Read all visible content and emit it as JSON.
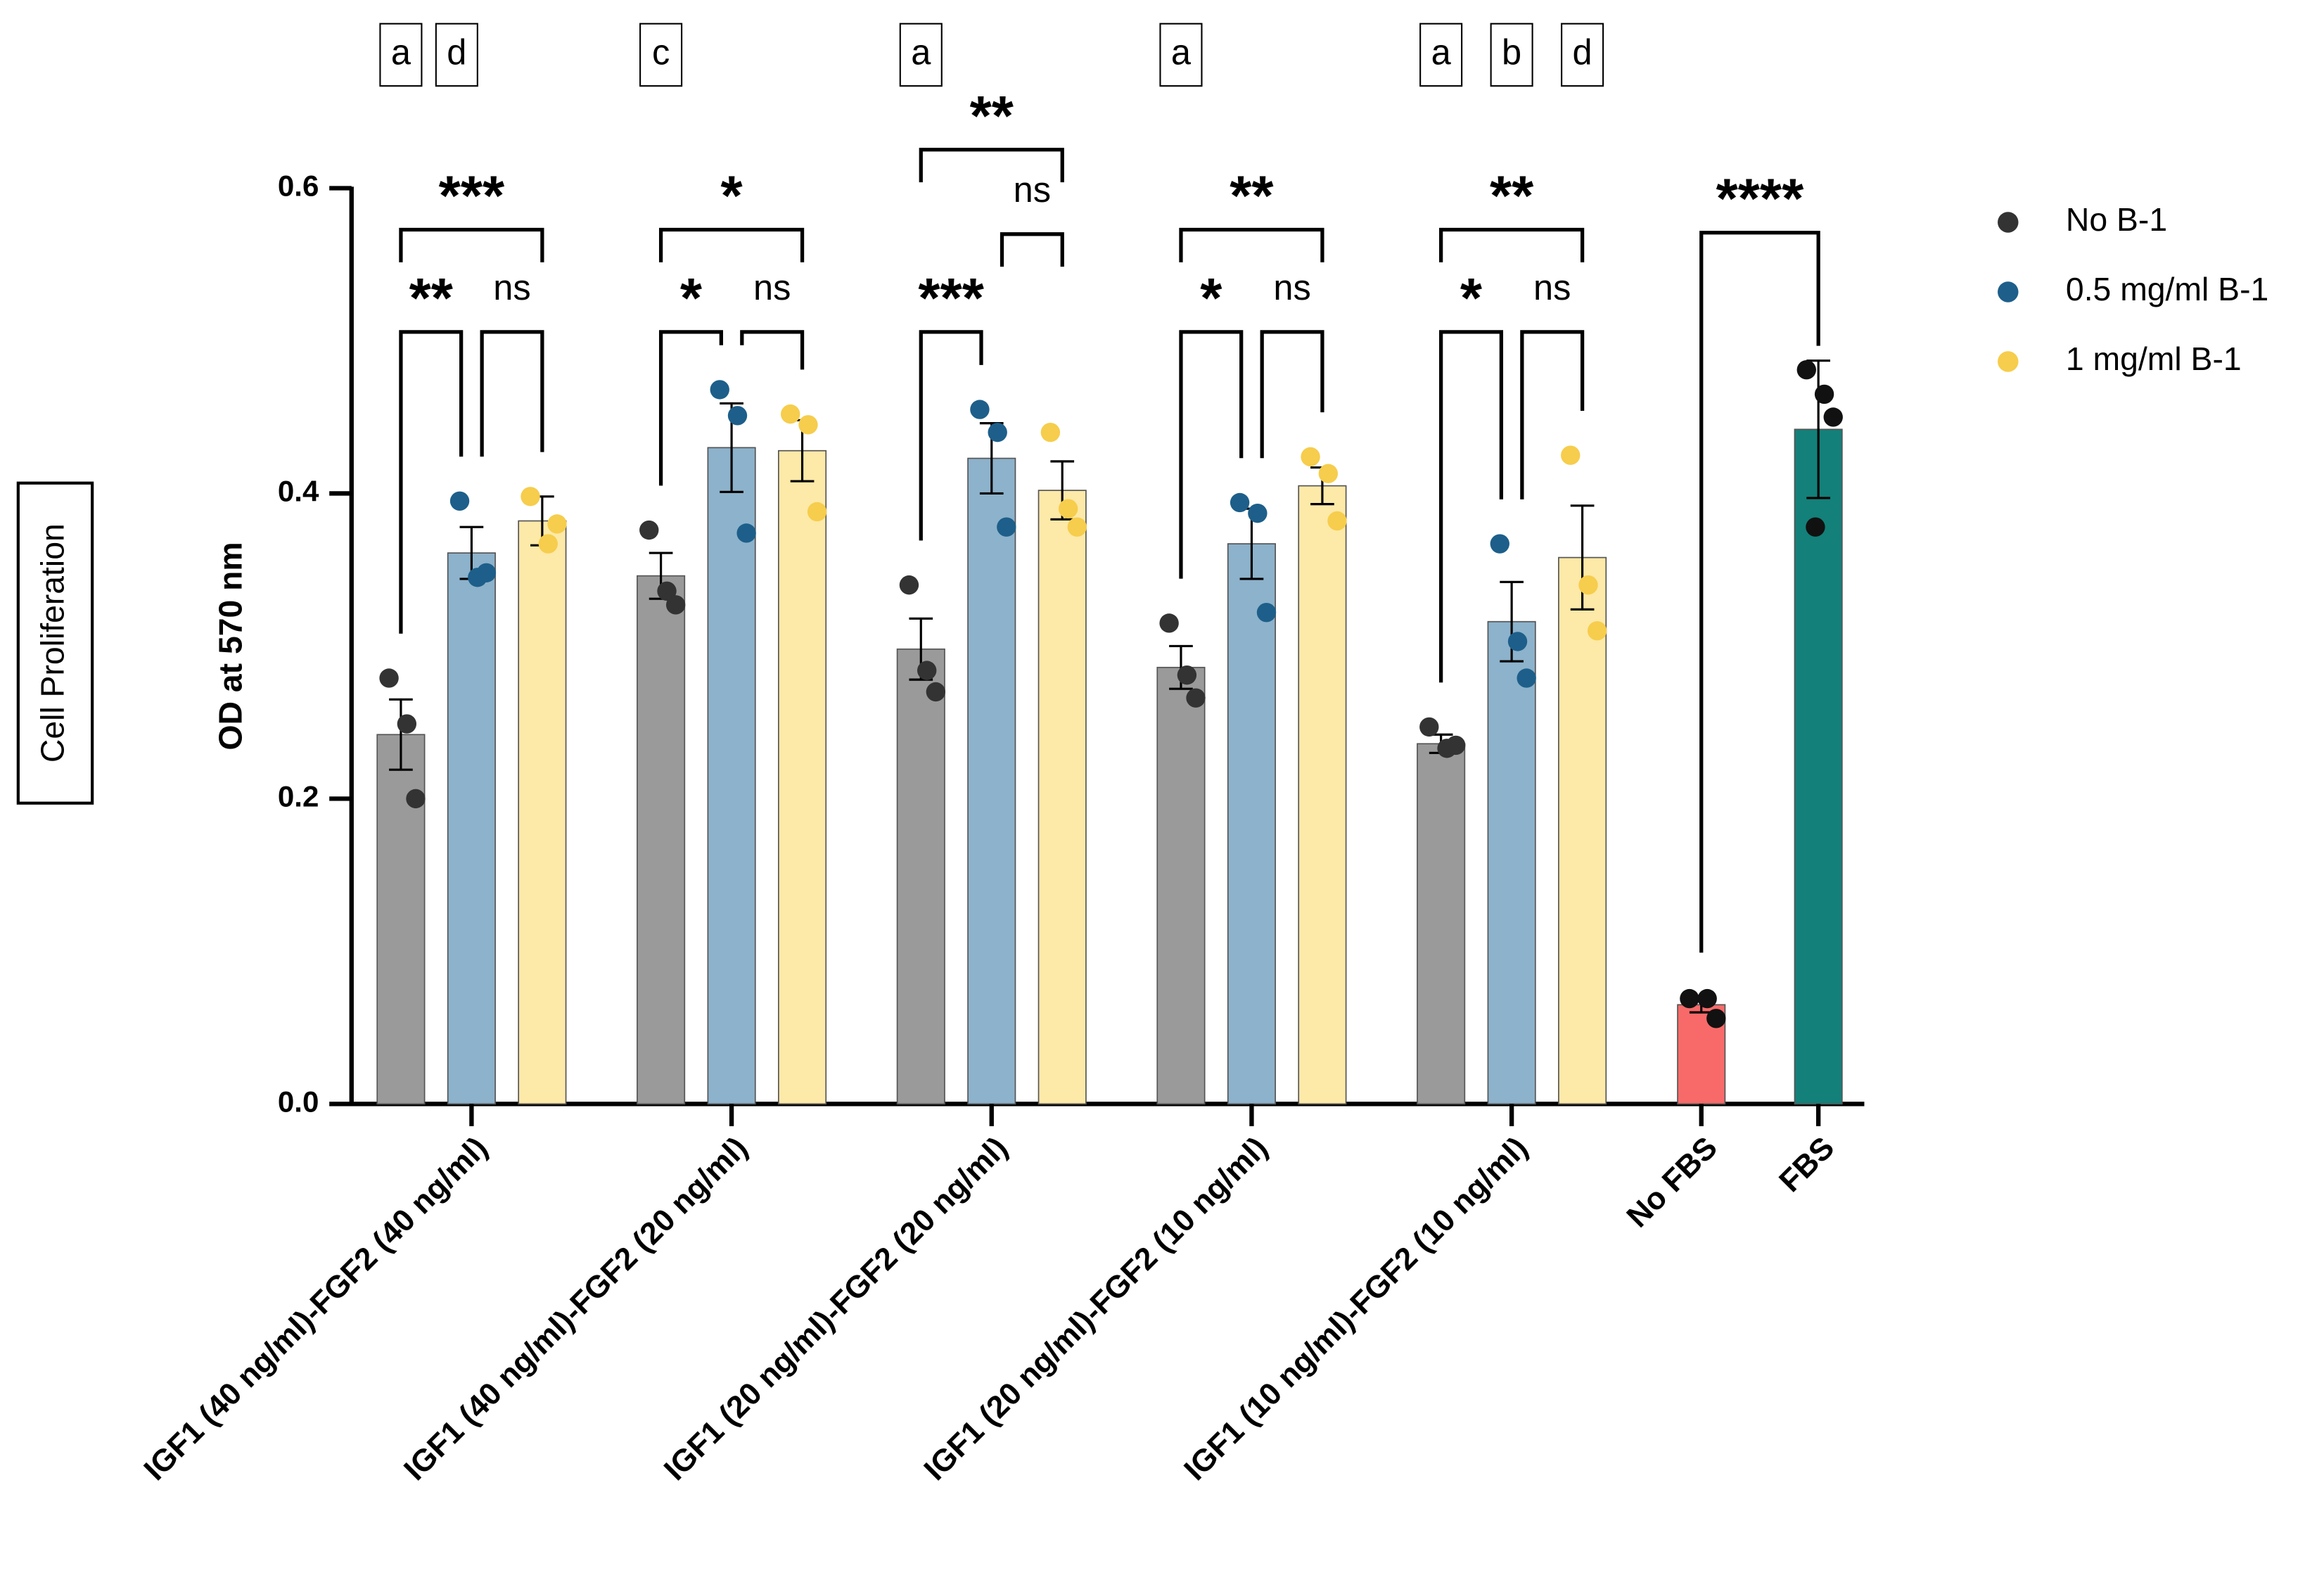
{
  "chart_data": {
    "type": "bar",
    "y_label": "OD at 570 nm",
    "side_label": "Cell Proliferation",
    "categories": [
      "IGF1 (40 ng/ml)-FGF2 (40 ng/ml)",
      "IGF1 (40 ng/ml)-FGF2 (20 ng/ml)",
      "IGF1 (20 ng/ml)-FGF2 (20 ng/ml)",
      "IGF1 (20 ng/ml)-FGF2 (10 ng/ml)",
      "IGF1 (10 ng/ml)-FGF2 (10 ng/ml)",
      "No FBS",
      "FBS"
    ],
    "ylim": [
      0,
      0.6
    ],
    "yticks": [
      {
        "value": 0,
        "label": "0.0"
      },
      0.2,
      0.4,
      0.6
    ],
    "legend": "right",
    "series": [
      {
        "name": "No B-1",
        "color": "#9a9a9a",
        "point_color": "#333333",
        "values": [
          0.242,
          0.346,
          0.298,
          0.286,
          0.236,
          null,
          null
        ],
        "errors": [
          0.023,
          0.015,
          0.02,
          0.014,
          0.006,
          null,
          null
        ],
        "points": [
          [
            0.279,
            0.249,
            0.2
          ],
          [
            0.376,
            0.336,
            0.327
          ],
          [
            0.34,
            0.284,
            0.27
          ],
          [
            0.315,
            0.281,
            0.266
          ],
          [
            0.247,
            0.233,
            0.235
          ],
          null,
          null
        ]
      },
      {
        "name": "0.5 mg/ml B-1",
        "color": "#8db2cb",
        "point_color": "#1d5f8a",
        "values": [
          0.361,
          0.43,
          0.423,
          0.367,
          0.316,
          null,
          null
        ],
        "errors": [
          0.017,
          0.029,
          0.023,
          0.023,
          0.026,
          null,
          null
        ],
        "points": [
          [
            0.395,
            0.345,
            0.348
          ],
          [
            0.468,
            0.451,
            0.374
          ],
          [
            0.455,
            0.44,
            0.378
          ],
          [
            0.394,
            0.387,
            0.322
          ],
          [
            0.367,
            0.303,
            0.279
          ],
          null,
          null
        ]
      },
      {
        "name": "1 mg/ml B-1",
        "color": "#fde9a8",
        "point_color": "#f6cd4c",
        "values": [
          0.382,
          0.428,
          0.402,
          0.405,
          0.358,
          null,
          null
        ],
        "errors": [
          0.016,
          0.02,
          0.019,
          0.012,
          0.034,
          null,
          null
        ],
        "points": [
          [
            0.398,
            0.367,
            0.38
          ],
          [
            0.452,
            0.445,
            0.388
          ],
          [
            0.44,
            0.39,
            0.378
          ],
          [
            0.424,
            0.413,
            0.382
          ],
          [
            0.425,
            0.34,
            0.31
          ],
          null,
          null
        ]
      }
    ],
    "controls": {
      "point_color": "#111111",
      "colors": [
        null,
        null,
        null,
        null,
        null,
        "#f86a6a",
        "#138079"
      ],
      "values": [
        null,
        null,
        null,
        null,
        null,
        0.065,
        0.442
      ],
      "errors": [
        null,
        null,
        null,
        null,
        null,
        0.005,
        0.045
      ],
      "points": [
        null,
        null,
        null,
        null,
        null,
        [
          0.069,
          0.069,
          0.056
        ],
        [
          0.481,
          0.465,
          0.45,
          0.378
        ]
      ]
    },
    "significance": [
      [
        {
          "label": "**",
          "from": 0,
          "to": 1
        },
        {
          "label": "ns",
          "from": 1,
          "to": 2
        },
        {
          "label": "***",
          "from": 0,
          "to": 2
        }
      ],
      [
        {
          "label": "*",
          "from": 0,
          "to": 1
        },
        {
          "label": "ns",
          "from": 1,
          "to": 2
        },
        {
          "label": "*",
          "from": 0,
          "to": 2
        }
      ],
      [
        {
          "label": "***",
          "from": 0,
          "to": 1
        },
        {
          "label": "ns",
          "from": 1,
          "to": 2
        },
        {
          "label": "**",
          "from": 0,
          "to": 2
        }
      ],
      [
        {
          "label": "*",
          "from": 0,
          "to": 1
        },
        {
          "label": "ns",
          "from": 1,
          "to": 2
        },
        {
          "label": "**",
          "from": 0,
          "to": 2
        }
      ],
      [
        {
          "label": "*",
          "from": 0,
          "to": 1
        },
        {
          "label": "ns",
          "from": 1,
          "to": 2
        },
        {
          "label": "**",
          "from": 0,
          "to": 2
        }
      ]
    ],
    "control_significance": {
      "label": "****"
    },
    "letters": [
      {
        "text": "a",
        "category": 0,
        "series": 0
      },
      {
        "text": "d",
        "category": 0,
        "series": 1
      },
      {
        "text": "c",
        "category": 1,
        "series": 0
      },
      {
        "text": "a",
        "category": 2,
        "series": 0
      },
      {
        "text": "a",
        "category": 3,
        "series": 0
      },
      {
        "text": "a",
        "category": 4,
        "series": 0
      },
      {
        "text": "b",
        "category": 4,
        "series": 1
      },
      {
        "text": "d",
        "category": 4,
        "series": 2
      }
    ]
  }
}
